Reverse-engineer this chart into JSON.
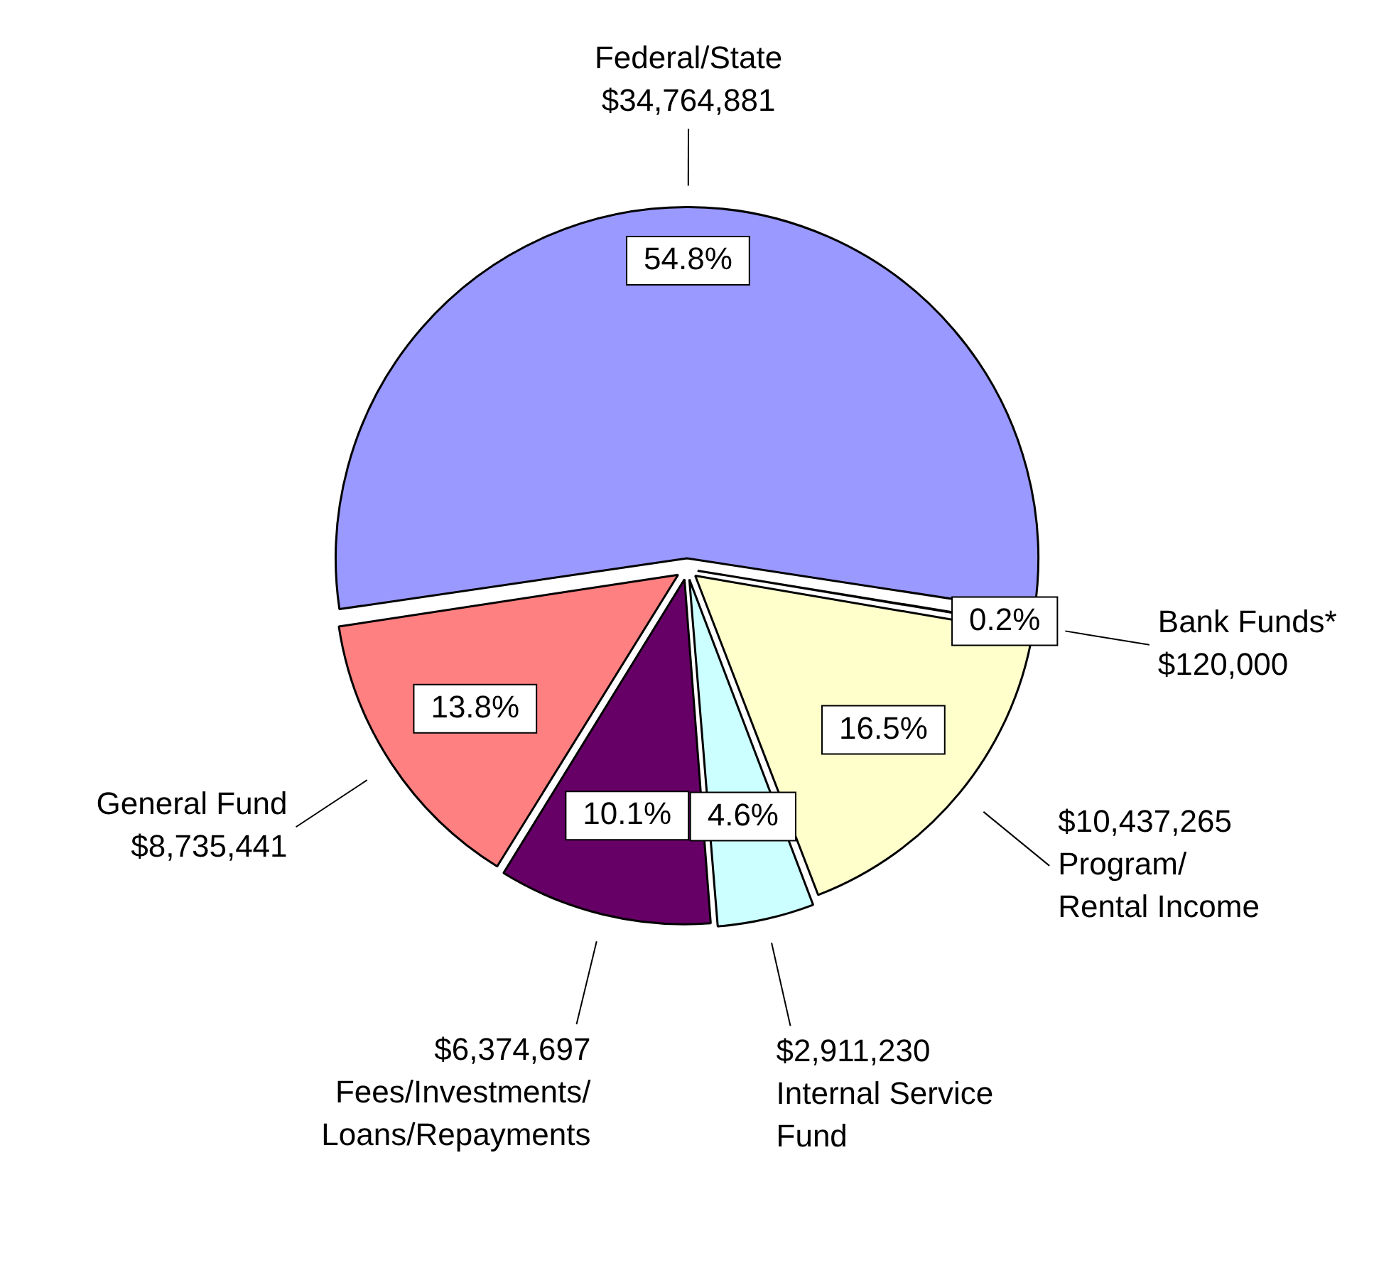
{
  "chart_data": {
    "type": "pie",
    "categories": [
      "Federal/State",
      "Bank Funds*",
      "Program/Rental Income",
      "Internal Service Fund",
      "Fees/Investments/Loans/Repayments",
      "General Fund"
    ],
    "values": [
      34764881,
      120000,
      10437265,
      2911230,
      6374697,
      8735441
    ],
    "value_labels": [
      "$34,764,881",
      "$120,000",
      "$10,437,265",
      "$2,911,230",
      "$6,374,697",
      "$8,735,441"
    ],
    "colors": [
      "#9999ff",
      "#5a1a33",
      "#ffffcc",
      "#ccffff",
      "#660066",
      "#ff8080"
    ],
    "annotations": [
      "54.8%",
      "0.2%",
      "16.5%",
      "4.6%",
      "10.1%",
      "13.8%"
    ],
    "legend": false
  }
}
